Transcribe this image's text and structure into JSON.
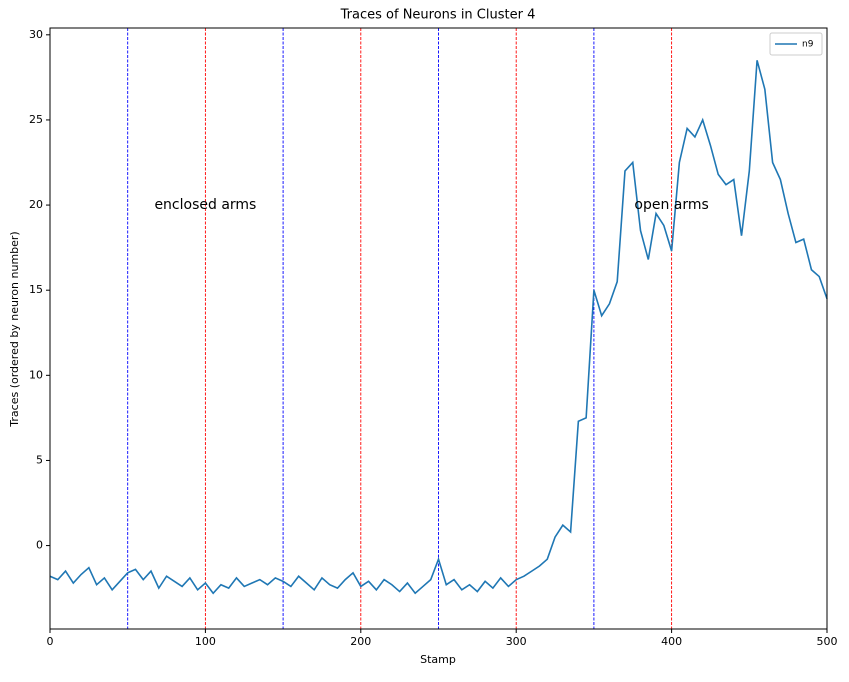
{
  "chart_data": {
    "type": "line",
    "title": "Traces of Neurons in Cluster 4",
    "x_label": "Stamp",
    "y_label": "Traces (ordered by neuron number)",
    "x": [
      0,
      5,
      10,
      15,
      20,
      25,
      30,
      35,
      40,
      45,
      50,
      55,
      60,
      65,
      70,
      75,
      80,
      85,
      90,
      95,
      100,
      105,
      110,
      115,
      120,
      125,
      130,
      135,
      140,
      145,
      150,
      155,
      160,
      165,
      170,
      175,
      180,
      185,
      190,
      195,
      200,
      205,
      210,
      215,
      220,
      225,
      230,
      235,
      240,
      245,
      250,
      255,
      260,
      265,
      270,
      275,
      280,
      285,
      290,
      295,
      300,
      305,
      310,
      315,
      320,
      325,
      330,
      335,
      340,
      345,
      350,
      355,
      360,
      365,
      370,
      375,
      380,
      385,
      390,
      395,
      400,
      405,
      410,
      415,
      420,
      425,
      430,
      435,
      440,
      445,
      450,
      455,
      460,
      465,
      470,
      475,
      480,
      485,
      490,
      495,
      500
    ],
    "series": [
      {
        "name": "n9",
        "color": "#1f77b4",
        "values": [
          -1.8,
          -2.0,
          -1.5,
          -2.2,
          -1.7,
          -1.3,
          -2.3,
          -1.9,
          -2.6,
          -2.1,
          -1.6,
          -1.4,
          -2.0,
          -1.5,
          -2.5,
          -1.8,
          -2.1,
          -2.4,
          -1.9,
          -2.6,
          -2.2,
          -2.8,
          -2.3,
          -2.5,
          -1.9,
          -2.4,
          -2.2,
          -2.0,
          -2.3,
          -1.9,
          -2.1,
          -2.4,
          -1.8,
          -2.2,
          -2.6,
          -1.9,
          -2.3,
          -2.5,
          -2.0,
          -1.6,
          -2.4,
          -2.1,
          -2.6,
          -2.0,
          -2.3,
          -2.7,
          -2.2,
          -2.8,
          -2.4,
          -2.0,
          -0.8,
          -2.3,
          -2.0,
          -2.6,
          -2.3,
          -2.7,
          -2.1,
          -2.5,
          -1.9,
          -2.4,
          -2.0,
          -1.8,
          -1.5,
          -1.2,
          -0.8,
          0.5,
          1.2,
          0.8,
          7.3,
          7.5,
          15.0,
          13.5,
          14.2,
          15.5,
          22.0,
          22.5,
          18.5,
          16.8,
          19.5,
          18.8,
          17.3,
          22.5,
          24.5,
          24.0,
          25.0,
          23.5,
          21.8,
          21.2,
          21.5,
          18.2,
          22.0,
          28.5,
          26.8,
          22.5,
          21.5,
          19.5,
          17.8,
          18.0,
          16.2,
          15.8,
          14.5
        ]
      }
    ],
    "xlim": [
      0,
      500
    ],
    "xticks": [
      0,
      100,
      200,
      300,
      400,
      500
    ],
    "ylim": [
      -4.9,
      30.4
    ],
    "yticks": [
      0,
      5,
      10,
      15,
      20,
      25,
      30
    ],
    "vlines": [
      {
        "x": 50,
        "color": "blue"
      },
      {
        "x": 150,
        "color": "blue"
      },
      {
        "x": 250,
        "color": "blue"
      },
      {
        "x": 350,
        "color": "blue"
      },
      {
        "x": 100,
        "color": "red"
      },
      {
        "x": 200,
        "color": "red"
      },
      {
        "x": 300,
        "color": "red"
      },
      {
        "x": 400,
        "color": "red"
      }
    ],
    "annotations": [
      {
        "text": "enclosed arms",
        "x": 100,
        "y": 20
      },
      {
        "text": "open arms",
        "x": 400,
        "y": 20
      }
    ],
    "legend": "upper right",
    "grid": false
  }
}
